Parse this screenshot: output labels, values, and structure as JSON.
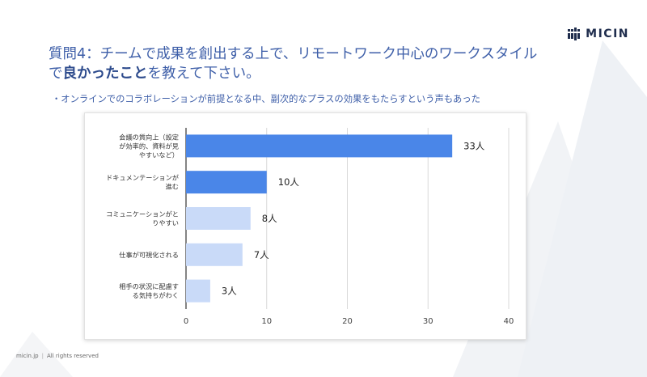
{
  "logo": {
    "text": "MICIN"
  },
  "title": {
    "line1": "質問4：チームで成果を創出する上で、リモートワーク中心のワークスタイル",
    "line2_prefix": "で",
    "line2_highlight": "良かったこと",
    "line2_suffix": "を教えて下さい。"
  },
  "subtitle": "・オンラインでのコラボレーションが前提となる中、副次的なプラスの効果をもたらすという声もあった",
  "footer": {
    "site": "micin.jp",
    "rights": "All rights reserved"
  },
  "chart_data": {
    "type": "bar",
    "orientation": "horizontal",
    "categories": [
      [
        "会議の質向上（設定",
        "が効率的、資料が見",
        "やすいなど）"
      ],
      [
        "ドキュメンテーションが",
        "進む"
      ],
      [
        "コミュニケーションがと",
        "りやすい"
      ],
      [
        "仕事が可視化される"
      ],
      [
        "相手の状況に配慮す",
        "る気持ちがわく"
      ]
    ],
    "values": [
      33,
      10,
      8,
      7,
      3
    ],
    "value_labels": [
      "33人",
      "10人",
      "8人",
      "7人",
      "3人"
    ],
    "bar_colors": [
      "#4a86e8",
      "#4a86e8",
      "#c9daf8",
      "#c9daf8",
      "#c9daf8"
    ],
    "xlim": [
      0,
      40
    ],
    "xticks": [
      "0",
      "10",
      "20",
      "30",
      "40"
    ],
    "grid": true
  }
}
